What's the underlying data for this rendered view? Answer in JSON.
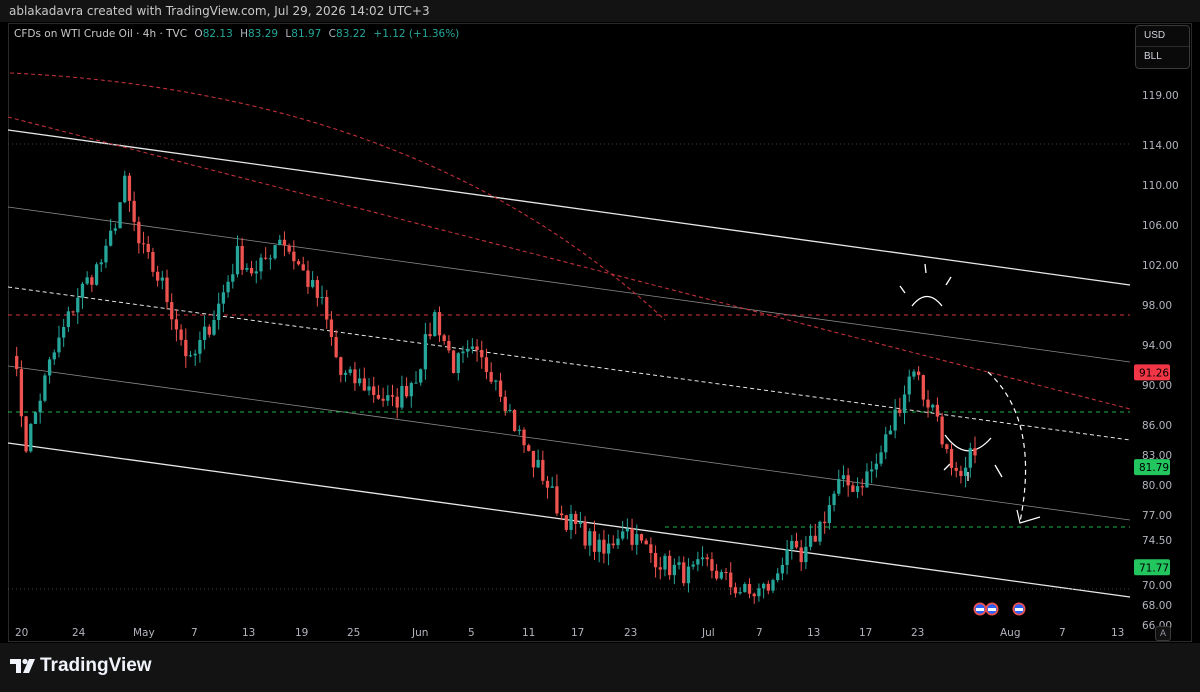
{
  "header": {
    "attribution": "ablakadavra created with TradingView.com, Jul 29, 2026 14:02 UTC+3"
  },
  "legend": {
    "symbol": "CFDs on WTI Crude Oil · 4h · TVC",
    "o_label": "O",
    "o_value": "82.13",
    "h_label": "H",
    "h_value": "83.29",
    "l_label": "L",
    "l_value": "81.97",
    "c_label": "C",
    "c_value": "83.22",
    "change": "+1.12 (+1.36%)"
  },
  "units": {
    "currency": "USD",
    "unit": "BLL"
  },
  "footer": {
    "brand": "TradingView",
    "auto_button": "A"
  },
  "colors": {
    "up": "#26a69a",
    "down": "#ef5350",
    "background": "#000000",
    "red_level": "#f23645",
    "green_level": "#22c55e"
  },
  "chart_data": {
    "type": "candlestick",
    "title": "CFDs on WTI Crude Oil · 4h · TVC",
    "ylim": [
      64.5,
      124
    ],
    "y_ticks": [
      "119.00",
      "114.00",
      "110.00",
      "106.00",
      "102.00",
      "98.00",
      "94.00",
      "90.00",
      "86.00",
      "83.00",
      "80.00",
      "77.00",
      "74.50",
      "70.00",
      "68.00",
      "66.00"
    ],
    "x_ticks": [
      "20",
      "24",
      "May",
      "7",
      "13",
      "19",
      "25",
      "Jun",
      "5",
      "11",
      "17",
      "23",
      "Jul",
      "7",
      "13",
      "17",
      "23",
      "Aug",
      "7",
      "13"
    ],
    "price_labels": [
      {
        "value": 91.26,
        "text": "91.26",
        "color": "#f23645"
      },
      {
        "value": 81.79,
        "text": "81.79",
        "color": "#22c55e"
      },
      {
        "value": 71.77,
        "text": "71.77",
        "color": "#22c55e"
      }
    ],
    "close_path": [
      [
        0,
        94
      ],
      [
        3,
        84
      ],
      [
        8,
        92
      ],
      [
        14,
        99
      ],
      [
        20,
        103
      ],
      [
        24,
        110
      ],
      [
        27,
        104
      ],
      [
        32,
        100
      ],
      [
        38,
        92
      ],
      [
        44,
        98
      ],
      [
        48,
        103
      ],
      [
        52,
        101
      ],
      [
        57,
        105
      ],
      [
        61,
        102
      ],
      [
        66,
        98
      ],
      [
        70,
        91
      ],
      [
        75,
        90
      ],
      [
        81,
        88
      ],
      [
        86,
        91
      ],
      [
        90,
        97
      ],
      [
        94,
        92
      ],
      [
        98,
        93
      ],
      [
        103,
        91
      ],
      [
        107,
        86
      ],
      [
        110,
        83
      ],
      [
        113,
        81
      ],
      [
        117,
        77
      ],
      [
        122,
        75
      ],
      [
        126,
        73
      ],
      [
        130,
        76
      ],
      [
        134,
        74
      ],
      [
        139,
        72
      ],
      [
        144,
        71
      ],
      [
        148,
        72
      ],
      [
        153,
        70
      ],
      [
        157,
        69
      ],
      [
        162,
        70
      ],
      [
        165,
        74
      ],
      [
        168,
        72
      ],
      [
        172,
        76
      ],
      [
        176,
        80
      ],
      [
        180,
        80
      ],
      [
        184,
        82
      ],
      [
        188,
        87
      ],
      [
        192,
        92
      ],
      [
        194,
        89
      ],
      [
        197,
        87
      ],
      [
        200,
        81
      ],
      [
        202,
        80
      ],
      [
        205,
        84
      ]
    ],
    "annotations": [
      "channel lines",
      "red dashed trendlines",
      "green dashed levels",
      "curved projection arrow",
      "top and bottom bracket marks"
    ]
  }
}
